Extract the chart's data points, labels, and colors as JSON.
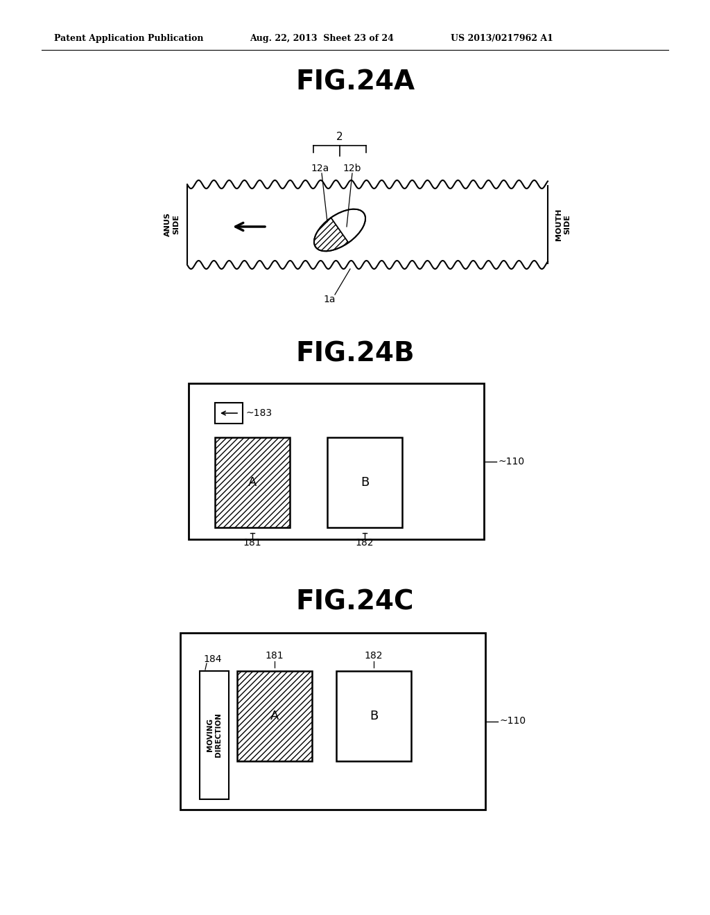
{
  "bg_color": "#ffffff",
  "header_left": "Patent Application Publication",
  "header_mid": "Aug. 22, 2013  Sheet 23 of 24",
  "header_right": "US 2013/0217962 A1",
  "fig24a_title": "FIG.24A",
  "fig24b_title": "FIG.24B",
  "fig24c_title": "FIG.24C",
  "label_2": "2",
  "label_12a": "12a",
  "label_12b": "12b",
  "label_1a": "1a",
  "label_anus": "ANUS\nSIDE",
  "label_mouth": "MOUTH\nSIDE",
  "label_110_b": "110",
  "label_110_c": "110",
  "label_181_b": "181",
  "label_182_b": "182",
  "label_183": "183",
  "label_184": "184",
  "label_181_c": "181",
  "label_182_c": "182",
  "label_A": "A",
  "label_B": "B",
  "label_A2": "A",
  "label_B2": "B",
  "label_moving": "MOVING\nDIRECTION"
}
